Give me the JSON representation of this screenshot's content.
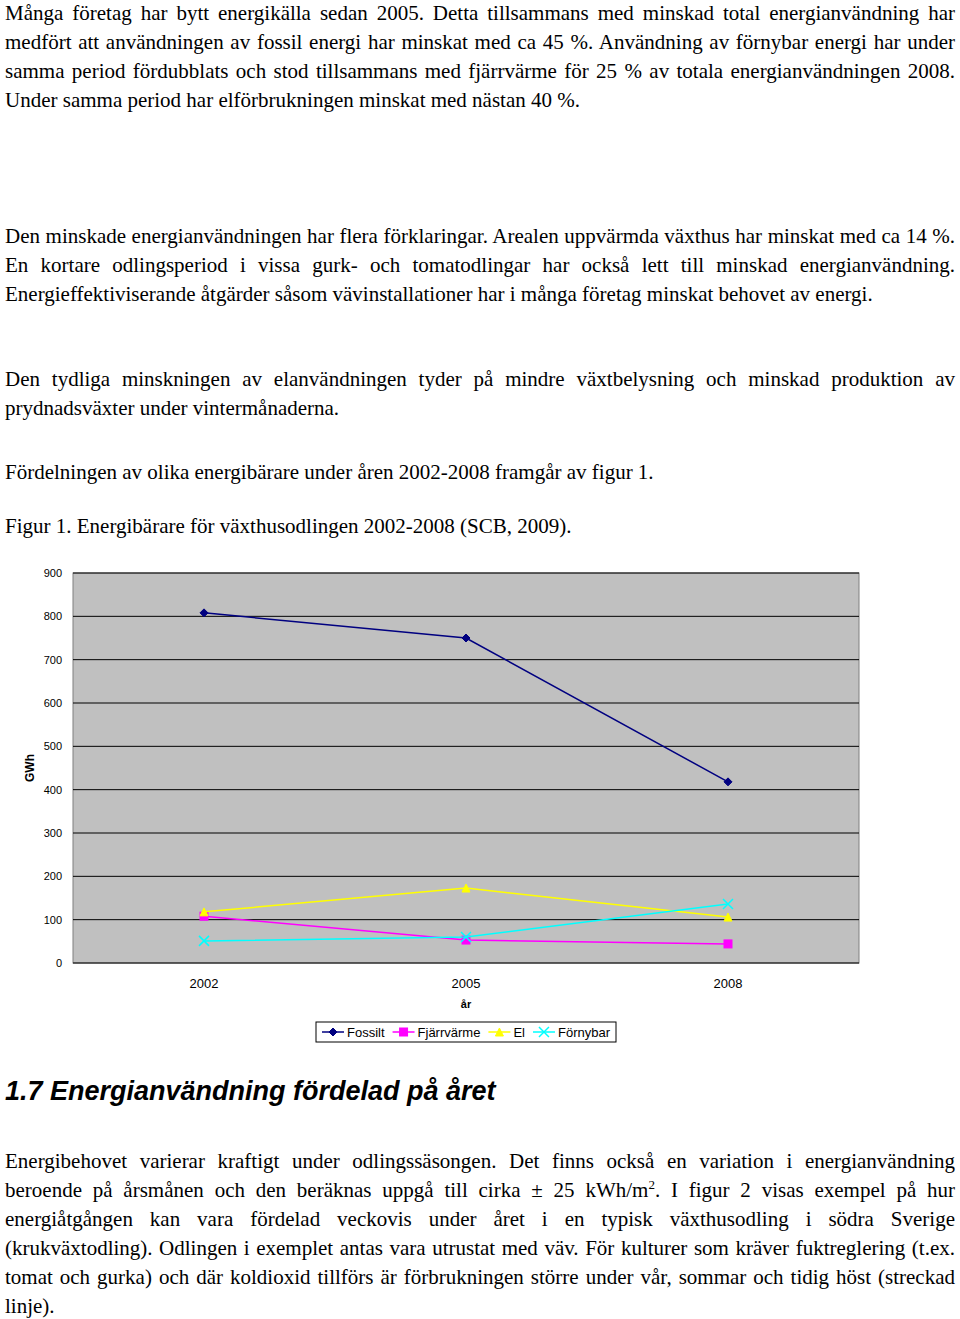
{
  "paragraphs_top": [
    "Många företag har bytt energikälla sedan 2005. Detta tillsammans med minskad total energianvändning har medfört att användningen av fossil energi har minskat med ca 45 %. Användning av förnybar energi har under samma period fördubblats och stod tillsammans med fjärrvärme för 25 % av totala energianvändningen 2008. Under samma period har elförbrukningen minskat med nästan 40 %.",
    "Den minskade energianvändningen har flera förklaringar. Arealen uppvärmda växthus har minskat med ca 14 %. En kortare odlingsperiod i vissa gurk- och tomatodlingar har också lett till minskad energianvändning. Energieffektiviserande åtgärder såsom vävinstallationer har i många företag minskat behovet av energi.",
    "Den tydliga minskningen av elanvändningen tyder på mindre växtbelysning och minskad produktion av prydnadsväxter under vintermånaderna.",
    "Fördelningen av olika energibärare under åren 2002-2008 framgår av figur 1."
  ],
  "figure_caption": "Figur 1. Energibärare för växthusodlingen 2002-2008 (SCB, 2009).",
  "chart_data": {
    "type": "line",
    "x_label": "år",
    "y_label": "GWh",
    "categories": [
      "2002",
      "2005",
      "2008"
    ],
    "series": [
      {
        "name": "Fossilt",
        "color": "#000080",
        "marker": "diamond",
        "values": [
          808,
          750,
          418
        ]
      },
      {
        "name": "Fjärrvärme",
        "color": "#ff00ff",
        "marker": "square",
        "values": [
          108,
          53,
          44
        ]
      },
      {
        "name": "El",
        "color": "#ffff00",
        "marker": "triangle",
        "values": [
          118,
          173,
          106
        ]
      },
      {
        "name": "Förnybar",
        "color": "#00ffff",
        "marker": "x",
        "values": [
          51,
          60,
          136
        ]
      }
    ],
    "ylim": [
      0,
      900
    ],
    "yticks": [
      0,
      100,
      200,
      300,
      400,
      500,
      600,
      700,
      800,
      900
    ],
    "grid": true,
    "legend": "bottom"
  },
  "section": {
    "heading": "1.7 Energianvändning fördelad på året",
    "paragraph": {
      "before": "Energibehovet varierar kraftigt under odlingssäsongen. Det finns också en variation i energianvändning beroende på årsmånen och den beräknas uppgå till cirka ± 25 kWh/m",
      "sup": "2",
      "after": ". I figur 2 visas exempel på hur energiåtgången kan vara fördelad veckovis under året i en typisk växthusodling i södra Sverige (krukväxtodling). Odlingen i exemplet antas vara utrustat med väv. För kulturer som kräver fuktreglering (t.ex. tomat och gurka) och där koldioxid tillförs är förbrukningen större under vår, sommar och tidig höst (streckad linje)."
    }
  }
}
